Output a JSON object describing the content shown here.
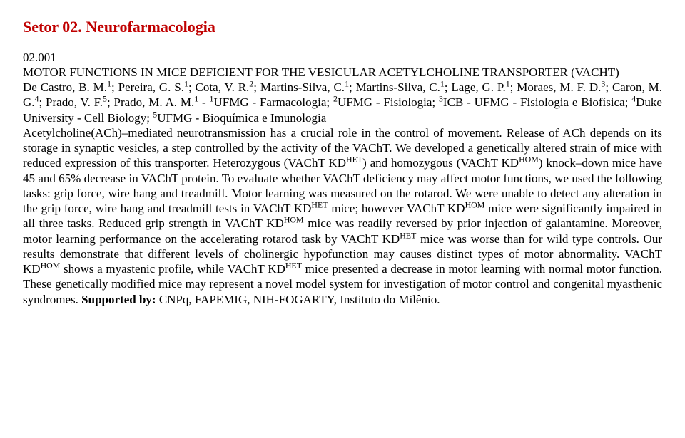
{
  "header_color": "#c00000",
  "section_header": "Setor 02. Neurofarmacologia",
  "abstract_number": "02.001",
  "title": "MOTOR FUNCTIONS IN MICE DEFICIENT FOR THE VESICULAR ACETYLCHOLINE TRANSPORTER (VACHT)",
  "authors_html": "De Castro, B. M.<sup>1</sup>; Pereira, G. S.<sup>1</sup>; Cota, V. R.<sup>2</sup>; Martins-Silva, C.<sup>1</sup>; Martins-Silva, C.<sup>1</sup>; Lage, G. P.<sup>1</sup>; Moraes, M. F. D.<sup>3</sup>; Caron, M. G.<sup>4</sup>; Prado, V. F.<sup>5</sup>; Prado, M. A. M.<sup>1</sup>",
  "affiliations_html": " - <sup>1</sup>UFMG - Farmacologia; <sup>2</sup>UFMG - Fisiologia; <sup>3</sup>ICB - UFMG - Fisiologia e Biofísica; <sup>4</sup>Duke University - Cell Biology; <sup>5</sup>UFMG - Bioquímica e Imunologia",
  "body_html": "Acetylcholine(ACh)–mediated neurotransmission has a crucial role in the control of movement. Release of ACh depends on its storage in synaptic vesicles, a step controlled by the activity of the VAChT. We developed a genetically altered strain of mice with reduced expression of this transporter. Heterozygous (VAChT KD<sup>HET</sup>) and homozygous (VAChT KD<sup>HOM</sup>) knock–down mice have 45 and 65% decrease in VAChT protein. To evaluate whether VAChT deficiency may affect motor functions, we used the following tasks: grip force, wire hang and treadmill. Motor learning was measured on the rotarod. We were unable to detect any alteration in the grip force, wire hang and treadmill tests in VAChT KD<sup>HET</sup> mice; however VAChT KD<sup>HOM</sup> mice were significantly impaired in all three tasks. Reduced grip strength in VAChT KD<sup>HOM</sup> mice was readily reversed by prior injection of galantamine. Moreover, motor learning performance on the accelerating rotarod task by VAChT KD<sup>HET</sup> mice was worse than for wild type controls. Our results demonstrate that different levels of cholinergic hypofunction may causes distinct types of motor abnormality. VAChT KD<sup>HOM</sup> shows a myastenic profile, while VAChT KD<sup>HET</sup> mice presented a decrease in motor learning with normal motor function. These genetically modified mice may represent a novel model system for investigation of motor control and congenital myasthenic syndromes. <span class=\"support\">Supported by:</span> CNPq, FAPEMIG, NIH-FOGARTY, Instituto do Milênio."
}
